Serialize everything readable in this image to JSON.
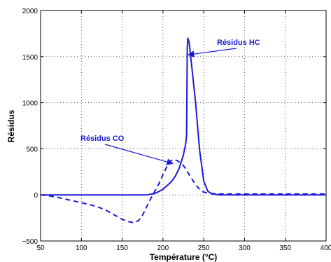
{
  "chart_data": {
    "type": "line",
    "title": "",
    "xlabel": "Température (°C)",
    "ylabel": "Résidus",
    "xlim": [
      50,
      400
    ],
    "ylim": [
      -500,
      2000
    ],
    "grid": true,
    "x_ticks": [
      "50",
      "100",
      "150",
      "200",
      "250",
      "300",
      "350",
      "400"
    ],
    "y_ticks": [
      "−500",
      "0",
      "500",
      "1000",
      "1500",
      "2000"
    ],
    "color": "#1a1adb",
    "series": [
      {
        "name": "Résidus HC",
        "line_style": "solid",
        "points": [
          [
            50,
            0
          ],
          [
            100,
            0
          ],
          [
            150,
            0
          ],
          [
            180,
            0
          ],
          [
            190,
            15
          ],
          [
            200,
            60
          ],
          [
            210,
            140
          ],
          [
            215,
            200
          ],
          [
            220,
            290
          ],
          [
            225,
            430
          ],
          [
            228,
            560
          ],
          [
            229,
            650
          ],
          [
            229.8,
            1600
          ],
          [
            230.5,
            1700
          ],
          [
            232,
            1660
          ],
          [
            235,
            1420
          ],
          [
            240,
            1000
          ],
          [
            245,
            480
          ],
          [
            250,
            150
          ],
          [
            255,
            40
          ],
          [
            260,
            10
          ],
          [
            270,
            0
          ],
          [
            300,
            0
          ],
          [
            350,
            0
          ],
          [
            400,
            0
          ]
        ]
      },
      {
        "name": "Résidus CO",
        "line_style": "dashed",
        "points": [
          [
            50,
            0
          ],
          [
            60,
            -10
          ],
          [
            70,
            -25
          ],
          [
            80,
            -45
          ],
          [
            90,
            -65
          ],
          [
            100,
            -85
          ],
          [
            110,
            -105
          ],
          [
            120,
            -130
          ],
          [
            130,
            -165
          ],
          [
            140,
            -215
          ],
          [
            150,
            -265
          ],
          [
            160,
            -295
          ],
          [
            165,
            -300
          ],
          [
            170,
            -280
          ],
          [
            175,
            -220
          ],
          [
            180,
            -130
          ],
          [
            185,
            -40
          ],
          [
            190,
            40
          ],
          [
            195,
            120
          ],
          [
            200,
            220
          ],
          [
            205,
            310
          ],
          [
            210,
            370
          ],
          [
            213,
            385
          ],
          [
            218,
            370
          ],
          [
            225,
            320
          ],
          [
            230,
            250
          ],
          [
            235,
            180
          ],
          [
            240,
            110
          ],
          [
            245,
            60
          ],
          [
            250,
            30
          ],
          [
            255,
            20
          ],
          [
            260,
            15
          ],
          [
            270,
            10
          ],
          [
            280,
            10
          ],
          [
            300,
            10
          ],
          [
            350,
            10
          ],
          [
            400,
            10
          ]
        ]
      }
    ],
    "annotations": [
      {
        "text": "Résidus HC",
        "target": [
          231,
          1520
        ]
      },
      {
        "text": "Résidus CO",
        "target": [
          212,
          340
        ]
      }
    ]
  }
}
